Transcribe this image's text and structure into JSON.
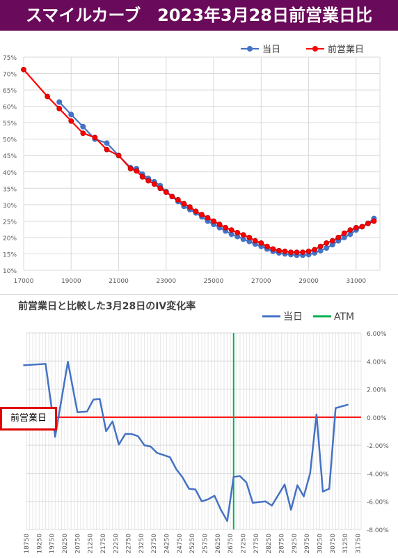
{
  "header": {
    "title": "スマイルカーブ　2023年3月28日前営業日比",
    "bg_color": "#6a0a5a"
  },
  "chart_data": [
    {
      "type": "line",
      "title": "",
      "xlabel": "",
      "ylabel": "",
      "xlim": [
        17000,
        32000
      ],
      "ylim": [
        10,
        75
      ],
      "x_ticks": [
        17000,
        19000,
        21000,
        23000,
        25000,
        27000,
        29000,
        31000
      ],
      "x_tick_labels": [
        "17000",
        "19000",
        "21000",
        "23000",
        "25000",
        "27000",
        "29000",
        "31000"
      ],
      "y_ticks": [
        10,
        15,
        20,
        25,
        30,
        35,
        40,
        45,
        50,
        55,
        60,
        65,
        70,
        75
      ],
      "y_tick_labels": [
        "10%",
        "15%",
        "20%",
        "25%",
        "30%",
        "35%",
        "40%",
        "45%",
        "50%",
        "55%",
        "60%",
        "65%",
        "70%",
        "75%"
      ],
      "legend_position": "top-right",
      "grid": true,
      "series": [
        {
          "name": "当日",
          "color": "#4472c4",
          "points": [
            [
              18500,
              61.3
            ],
            [
              19000,
              57.5
            ],
            [
              19500,
              53.8
            ],
            [
              20000,
              50.0
            ],
            [
              20500,
              48.8
            ],
            [
              21000,
              45.0
            ],
            [
              21500,
              41.3
            ],
            [
              21750,
              41.0
            ],
            [
              22000,
              39.3
            ],
            [
              22250,
              38.0
            ],
            [
              22500,
              37.0
            ],
            [
              22750,
              35.8
            ],
            [
              23000,
              34.0
            ],
            [
              23250,
              32.5
            ],
            [
              23500,
              31.0
            ],
            [
              23750,
              29.5
            ],
            [
              24000,
              28.5
            ],
            [
              24250,
              27.5
            ],
            [
              24500,
              26.3
            ],
            [
              24750,
              25.0
            ],
            [
              25000,
              24.0
            ],
            [
              25250,
              23.0
            ],
            [
              25500,
              22.0
            ],
            [
              25750,
              21.0
            ],
            [
              26000,
              20.3
            ],
            [
              26250,
              19.5
            ],
            [
              26500,
              18.8
            ],
            [
              26750,
              18.0
            ],
            [
              27000,
              17.3
            ],
            [
              27250,
              16.5
            ],
            [
              27500,
              15.8
            ],
            [
              27750,
              15.3
            ],
            [
              28000,
              15.0
            ],
            [
              28250,
              14.8
            ],
            [
              28500,
              14.6
            ],
            [
              28750,
              14.6
            ],
            [
              29000,
              14.8
            ],
            [
              29250,
              15.3
            ],
            [
              29500,
              16.0
            ],
            [
              29750,
              16.8
            ],
            [
              30000,
              17.8
            ],
            [
              30250,
              19.0
            ],
            [
              30500,
              20.0
            ],
            [
              30750,
              21.0
            ],
            [
              31000,
              22.3
            ],
            [
              31250,
              23.3
            ],
            [
              31500,
              24.3
            ],
            [
              31750,
              25.8
            ]
          ]
        },
        {
          "name": "前営業日",
          "color": "#ff0000",
          "points": [
            [
              17000,
              71.2
            ],
            [
              18000,
              63.0
            ],
            [
              18500,
              59.3
            ],
            [
              19000,
              55.5
            ],
            [
              19500,
              51.8
            ],
            [
              20000,
              50.5
            ],
            [
              20500,
              46.8
            ],
            [
              21000,
              45.0
            ],
            [
              21500,
              41.0
            ],
            [
              21750,
              40.3
            ],
            [
              22000,
              38.5
            ],
            [
              22250,
              37.3
            ],
            [
              22500,
              36.3
            ],
            [
              22750,
              35.0
            ],
            [
              23000,
              33.8
            ],
            [
              23250,
              32.5
            ],
            [
              23500,
              31.5
            ],
            [
              23750,
              30.3
            ],
            [
              24000,
              29.3
            ],
            [
              24250,
              28.0
            ],
            [
              24500,
              27.0
            ],
            [
              24750,
              26.0
            ],
            [
              25000,
              25.0
            ],
            [
              25250,
              24.0
            ],
            [
              25500,
              23.0
            ],
            [
              25750,
              22.3
            ],
            [
              26000,
              21.5
            ],
            [
              26250,
              20.8
            ],
            [
              26500,
              20.0
            ],
            [
              26750,
              19.0
            ],
            [
              27000,
              18.3
            ],
            [
              27250,
              17.3
            ],
            [
              27500,
              16.5
            ],
            [
              27750,
              16.0
            ],
            [
              28000,
              15.8
            ],
            [
              28250,
              15.5
            ],
            [
              28500,
              15.5
            ],
            [
              28750,
              15.5
            ],
            [
              29000,
              15.8
            ],
            [
              29250,
              16.3
            ],
            [
              29500,
              17.3
            ],
            [
              29750,
              18.3
            ],
            [
              30000,
              19.0
            ],
            [
              30250,
              20.0
            ],
            [
              30500,
              21.3
            ],
            [
              30750,
              22.3
            ],
            [
              31000,
              23.0
            ],
            [
              31250,
              23.3
            ],
            [
              31500,
              24.3
            ],
            [
              31750,
              25.0
            ]
          ]
        }
      ]
    },
    {
      "type": "line",
      "title": "前営業日と比較した3月28日のIV変化率",
      "xlabel": "",
      "ylabel": "",
      "categories_start": 18750,
      "categories_step": 125,
      "categories_count": 106,
      "x_tick_labels": [
        "18750",
        "19250",
        "19750",
        "20250",
        "20750",
        "21250",
        "21750",
        "22250",
        "22750",
        "23250",
        "23750",
        "24250",
        "24750",
        "25250",
        "25750",
        "26250",
        "26750",
        "27250",
        "27750",
        "28250",
        "28750",
        "29250",
        "29750",
        "30250",
        "30750",
        "31250",
        "31750"
      ],
      "ylim": [
        -8,
        6
      ],
      "y_ticks": [
        6,
        4,
        2,
        0,
        -2,
        -4,
        -6,
        -8
      ],
      "y_tick_labels": [
        "6.00%",
        "4.00%",
        "2.00%",
        "0.00%",
        "-2.00%",
        "-4.00%",
        "-6.00%",
        "-8.00%"
      ],
      "legend_position": "top-right",
      "grid": true,
      "series": [
        {
          "name": "当日",
          "color": "#4472c4",
          "points": [
            [
              18625,
              3.7
            ],
            [
              19500,
              3.8
            ],
            [
              19750,
              0.5
            ],
            [
              19875,
              -1.4
            ],
            [
              20375,
              3.95
            ],
            [
              20750,
              0.35
            ],
            [
              21125,
              0.4
            ],
            [
              21375,
              1.25
            ],
            [
              21625,
              1.3
            ],
            [
              21875,
              -1.0
            ],
            [
              22125,
              -0.3
            ],
            [
              22375,
              -1.95
            ],
            [
              22625,
              -1.2
            ],
            [
              22875,
              -1.2
            ],
            [
              23125,
              -1.35
            ],
            [
              23375,
              -2.0
            ],
            [
              23625,
              -2.1
            ],
            [
              23875,
              -2.55
            ],
            [
              24125,
              -2.7
            ],
            [
              24375,
              -2.85
            ],
            [
              24625,
              -3.7
            ],
            [
              24875,
              -4.3
            ],
            [
              25125,
              -5.1
            ],
            [
              25375,
              -5.15
            ],
            [
              25625,
              -6.0
            ],
            [
              25875,
              -5.85
            ],
            [
              26125,
              -5.6
            ],
            [
              26375,
              -6.6
            ],
            [
              26625,
              -7.4
            ],
            [
              26875,
              -4.25
            ],
            [
              27125,
              -4.2
            ],
            [
              27375,
              -4.65
            ],
            [
              27625,
              -6.1
            ],
            [
              27875,
              -6.05
            ],
            [
              28125,
              -6.0
            ],
            [
              28375,
              -6.3
            ],
            [
              28875,
              -4.8
            ],
            [
              29125,
              -6.6
            ],
            [
              29375,
              -4.85
            ],
            [
              29625,
              -5.65
            ],
            [
              29875,
              -4.0
            ],
            [
              30125,
              0.2
            ],
            [
              30375,
              -5.3
            ],
            [
              30625,
              -5.1
            ],
            [
              30875,
              0.65
            ],
            [
              31375,
              0.9
            ]
          ]
        },
        {
          "name": "ATM",
          "color": "#00b050",
          "x": 26875
        }
      ],
      "reference_line": {
        "value": 0,
        "color": "#ff0000",
        "label": "前営業日"
      }
    }
  ]
}
